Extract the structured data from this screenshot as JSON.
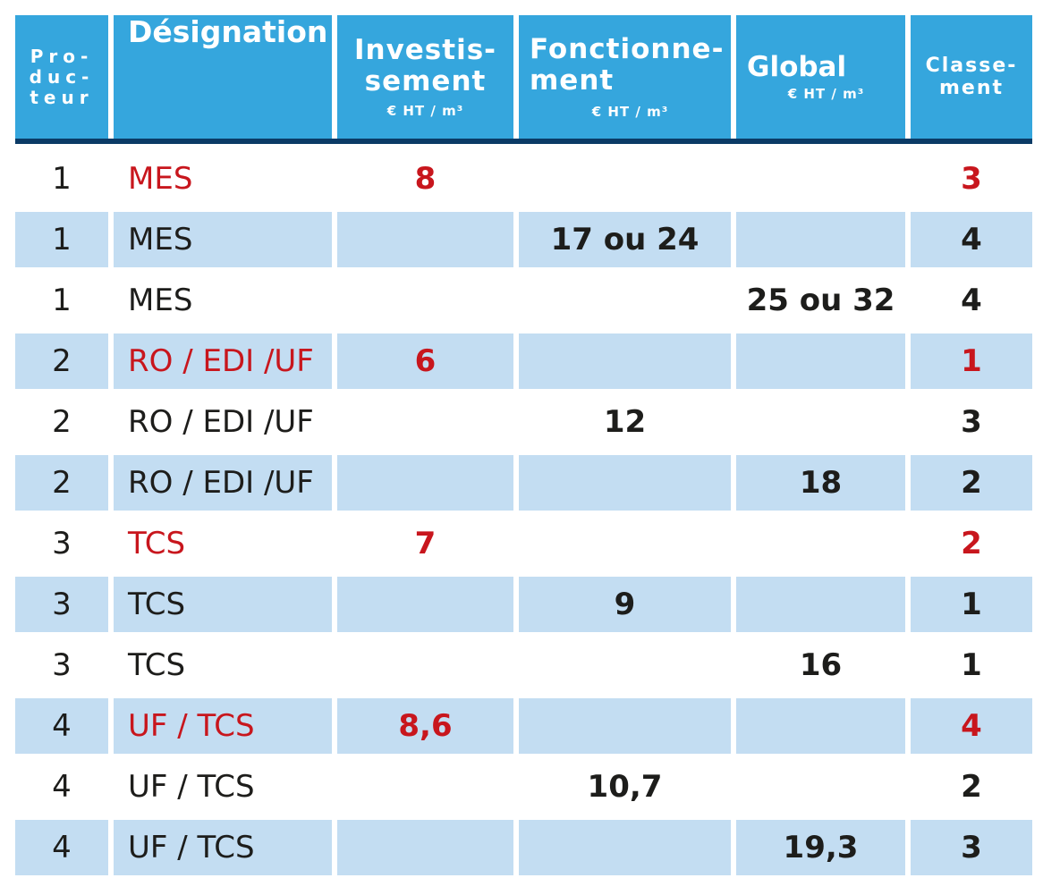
{
  "header": {
    "producteur": [
      "Pro-",
      "duc-",
      "teur"
    ],
    "designation": "Désignation",
    "investissement": [
      "Investis-",
      "sement"
    ],
    "investissement_unit": "€ HT / m³",
    "fonctionnement": [
      "Fonctionne-",
      "ment"
    ],
    "fonctionnement_unit": "€ HT / m³",
    "global": "Global",
    "global_unit": "€ HT / m³",
    "classement": [
      "Classe-",
      "ment"
    ]
  },
  "colors": {
    "header_bg": "#35a6dd",
    "header_rule": "#0b3b66",
    "row_shade": "#c3ddf2",
    "highlight_red": "#c8161d"
  },
  "rows": [
    {
      "producteur": "1",
      "designation": "MES",
      "investissement": "8",
      "fonctionnement": "",
      "global": "",
      "classement": "3",
      "highlight": true
    },
    {
      "producteur": "1",
      "designation": "MES",
      "investissement": "",
      "fonctionnement": "17 ou 24",
      "global": "",
      "classement": "4",
      "highlight": false
    },
    {
      "producteur": "1",
      "designation": "MES",
      "investissement": "",
      "fonctionnement": "",
      "global": "25 ou 32",
      "classement": "4",
      "highlight": false
    },
    {
      "producteur": "2",
      "designation": "RO / EDI /UF",
      "investissement": "6",
      "fonctionnement": "",
      "global": "",
      "classement": "1",
      "highlight": true
    },
    {
      "producteur": "2",
      "designation": "RO / EDI /UF",
      "investissement": "",
      "fonctionnement": "12",
      "global": "",
      "classement": "3",
      "highlight": false
    },
    {
      "producteur": "2",
      "designation": "RO / EDI /UF",
      "investissement": "",
      "fonctionnement": "",
      "global": "18",
      "classement": "2",
      "highlight": false
    },
    {
      "producteur": "3",
      "designation": "TCS",
      "investissement": "7",
      "fonctionnement": "",
      "global": "",
      "classement": "2",
      "highlight": true
    },
    {
      "producteur": "3",
      "designation": "TCS",
      "investissement": "",
      "fonctionnement": "9",
      "global": "",
      "classement": "1",
      "highlight": false
    },
    {
      "producteur": "3",
      "designation": "TCS",
      "investissement": "",
      "fonctionnement": "",
      "global": "16",
      "classement": "1",
      "highlight": false
    },
    {
      "producteur": "4",
      "designation": "UF / TCS",
      "investissement": "8,6",
      "fonctionnement": "",
      "global": "",
      "classement": "4",
      "highlight": true
    },
    {
      "producteur": "4",
      "designation": "UF / TCS",
      "investissement": "",
      "fonctionnement": "10,7",
      "global": "",
      "classement": "2",
      "highlight": false
    },
    {
      "producteur": "4",
      "designation": "UF / TCS",
      "investissement": "",
      "fonctionnement": "",
      "global": "19,3",
      "classement": "3",
      "highlight": false
    }
  ]
}
